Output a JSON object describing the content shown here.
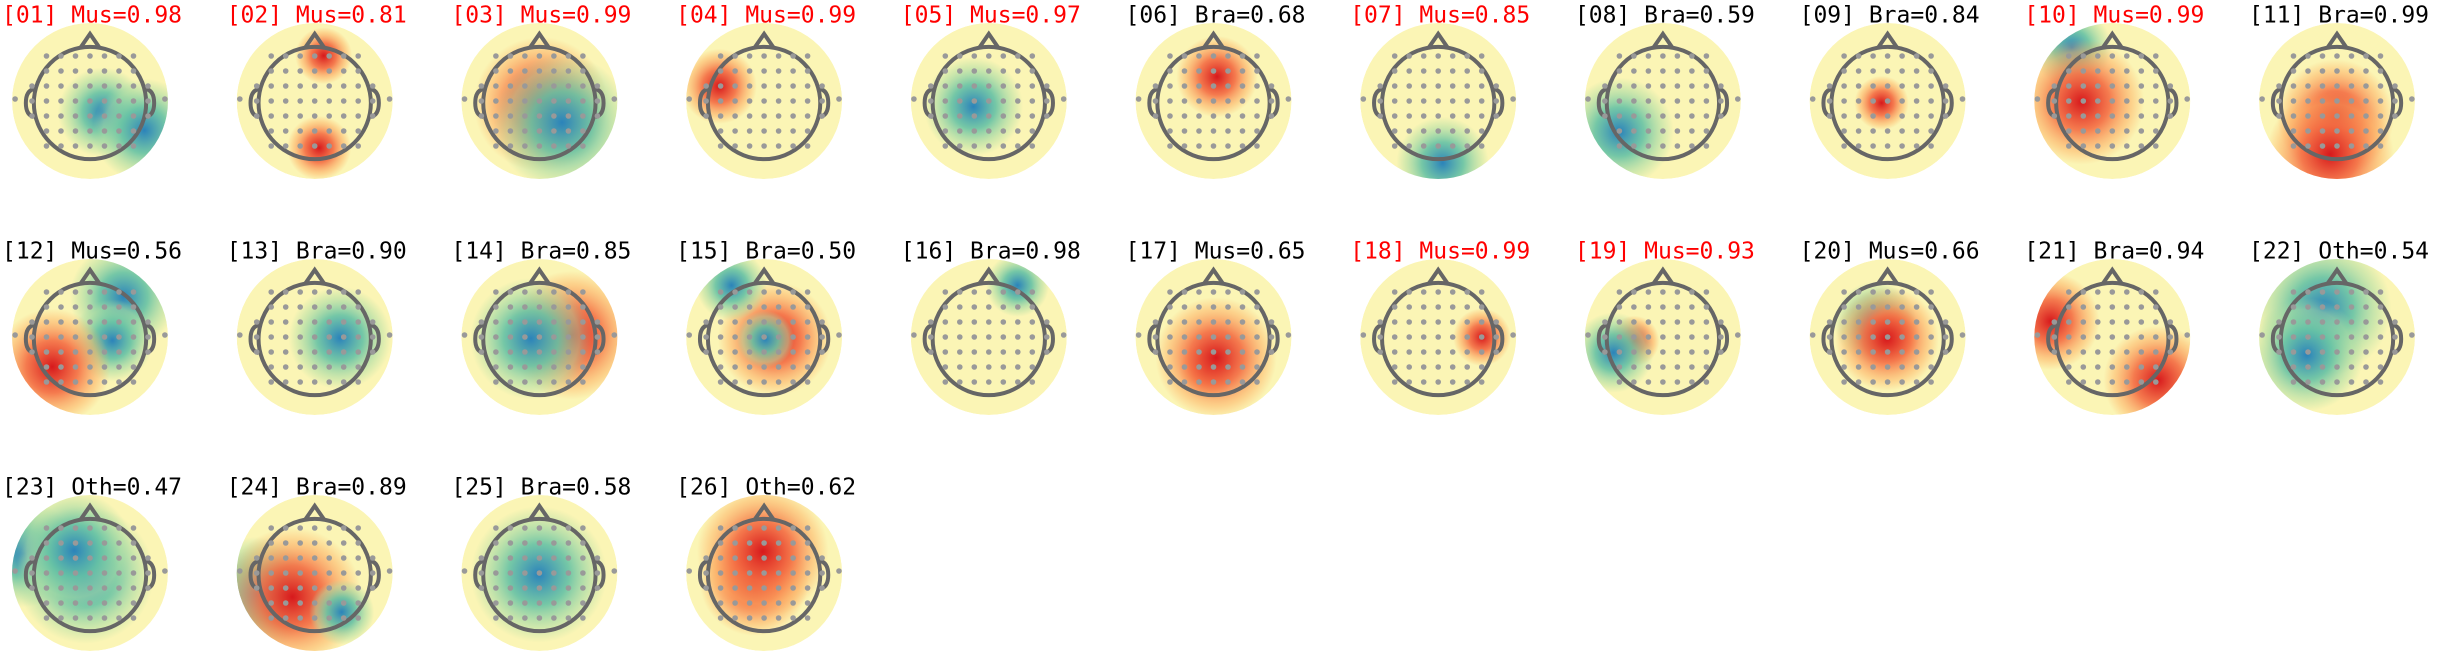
{
  "components": [
    {
      "label": "[01] Mus=0.98",
      "color": "#ff0000"
    },
    {
      "label": "[02] Mus=0.81",
      "color": "#ff0000"
    },
    {
      "label": "[03] Mus=0.99",
      "color": "#ff0000"
    },
    {
      "label": "[04] Mus=0.99",
      "color": "#ff0000"
    },
    {
      "label": "[05] Mus=0.97",
      "color": "#ff0000"
    },
    {
      "label": "[06] Bra=0.68",
      "color": "#000000"
    },
    {
      "label": "[07] Mus=0.85",
      "color": "#ff0000"
    },
    {
      "label": "[08] Bra=0.59",
      "color": "#000000"
    },
    {
      "label": "[09] Bra=0.84",
      "color": "#000000"
    },
    {
      "label": "[10] Mus=0.99",
      "color": "#ff0000"
    },
    {
      "label": "[11] Bra=0.99",
      "color": "#000000"
    },
    {
      "label": "[12] Mus=0.56",
      "color": "#000000"
    },
    {
      "label": "[13] Bra=0.90",
      "color": "#000000"
    },
    {
      "label": "[14] Bra=0.85",
      "color": "#000000"
    },
    {
      "label": "[15] Bra=0.50",
      "color": "#000000"
    },
    {
      "label": "[16] Bra=0.98",
      "color": "#000000"
    },
    {
      "label": "[17] Mus=0.65",
      "color": "#000000"
    },
    {
      "label": "[18] Mus=0.99",
      "color": "#ff0000"
    },
    {
      "label": "[19] Mus=0.93",
      "color": "#ff0000"
    },
    {
      "label": "[20] Mus=0.66",
      "color": "#000000"
    },
    {
      "label": "[21] Bra=0.94",
      "color": "#000000"
    },
    {
      "label": "[22] Oth=0.54",
      "color": "#000000"
    },
    {
      "label": "[23] Oth=0.47",
      "color": "#000000"
    },
    {
      "label": "[24] Bra=0.89",
      "color": "#000000"
    },
    {
      "label": "[25] Bra=0.58",
      "color": "#000000"
    },
    {
      "label": "[26] Oth=0.62",
      "color": "#000000"
    }
  ]
}
